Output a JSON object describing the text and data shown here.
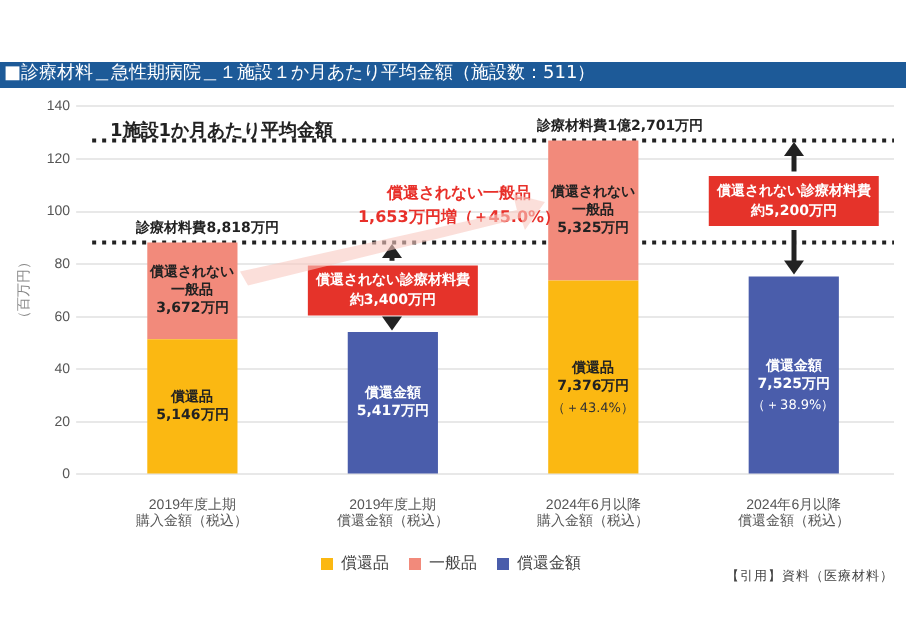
{
  "chart_data": {
    "type": "bar",
    "title": "■診療材料＿急性期病院＿１施設１か月あたり平均金額（施設数：511）",
    "subtitle": "1施設1か月あたり平均金額",
    "ylabel": "（百万円）",
    "categories": [
      "2019年度上期購入金額（税込）",
      "2019年度上期償還金額（税込）",
      "2024年6月以降購入金額（税込）",
      "2024年6月以降償還金額（税込）"
    ],
    "stacked": true,
    "series": [
      {
        "name": "償還品",
        "color": "#fbb812",
        "values": [
          51.46,
          null,
          73.76,
          null
        ],
        "value_labels": [
          "償還品5,146万円",
          null,
          "償還品7,376万円",
          null
        ]
      },
      {
        "name": "一般品",
        "color": "#f28a7b",
        "values": [
          36.72,
          null,
          53.25,
          null
        ],
        "value_labels": [
          "償還されない一般品3,672万円",
          null,
          "償還されない一般品5,325万円",
          null
        ]
      },
      {
        "name": "償還金額",
        "color": "#4a5dab",
        "values": [
          null,
          54.17,
          null,
          75.25
        ],
        "value_labels": [
          null,
          "償還金額5,417万円",
          null,
          "償還金額7,525万円"
        ]
      }
    ],
    "ylim": [
      0,
      140
    ],
    "yticks": [
      0,
      20,
      40,
      60,
      80,
      100,
      120,
      140
    ],
    "grid": "y",
    "legend": "bottom",
    "ref_lines": [
      {
        "axis": "y",
        "value": 88.18,
        "line_style": "dotted",
        "color": "#222222"
      },
      {
        "axis": "y",
        "value": 127.01,
        "line_style": "dotted",
        "color": "#222222"
      }
    ],
    "annotations": [
      {
        "text": "診療材料費8,818万円",
        "x": "2019年度上期購入金額（税込）",
        "y": 88.18
      },
      {
        "text": "診療材料費1億2,701万円",
        "x": "2024年6月以降購入金額（税込）",
        "y": 127.01
      },
      "償還されない一般品1,653万円増（＋45.0%）",
      "償還されない診療材料費約3,400万円",
      "償還されない診療材料費約5,200万円",
      "（＋43.4%）",
      "（＋38.9%）",
      "【引用】資料（医療材料）"
    ]
  }
}
